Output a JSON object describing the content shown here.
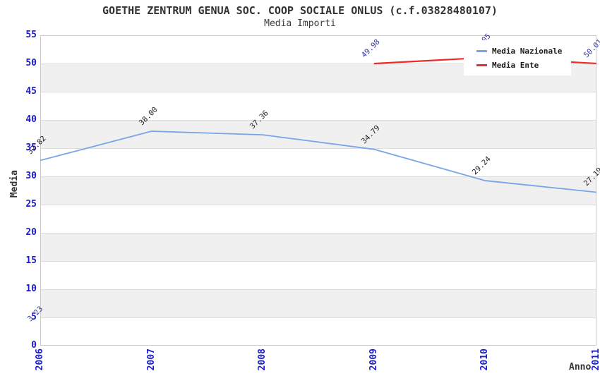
{
  "chart_data": {
    "type": "line",
    "title": "GOETHE ZENTRUM GENUA SOC. COOP SOCIALE ONLUS (c.f.03828480107)",
    "subtitle": "Media Importi",
    "xlabel": "Anno",
    "ylabel": "Media",
    "categories": [
      "2006",
      "2007",
      "2008",
      "2009",
      "2010",
      "2011"
    ],
    "series": [
      {
        "name": "Media Nazionale",
        "color": "#76A5E8",
        "label_color": "#222222",
        "values": [
          32.82,
          38.0,
          37.36,
          34.79,
          29.24,
          27.19
        ],
        "labels": [
          "32.82",
          "38.00",
          "37.36",
          "34.79",
          "29.24",
          "27.19"
        ]
      },
      {
        "name": "Media Ente",
        "color": "#EE2B2B",
        "label_color": "#333399",
        "values": [
          3.23,
          null,
          null,
          49.98,
          51.05,
          50.01
        ],
        "labels": [
          "3.23",
          null,
          null,
          "49.98",
          "51.05",
          "50.01"
        ],
        "value_estimated_index": 4,
        "label_hidden_behind_legend_index": 4
      }
    ],
    "ylim": [
      0,
      55
    ],
    "ytick_step": 5,
    "yticks": [
      "0",
      "5",
      "10",
      "15",
      "20",
      "25",
      "30",
      "35",
      "40",
      "45",
      "50",
      "55"
    ],
    "grid": "alternating horizontal bands every 5 units",
    "legend_position": "top-right overlay",
    "band_colors": [
      "#FFFFFF",
      "#F0F0F0"
    ],
    "band_line_color": "#DDDDDD",
    "plot_border_color": "#CCCCCC",
    "axis_tick_color": "#1A1AD6"
  }
}
